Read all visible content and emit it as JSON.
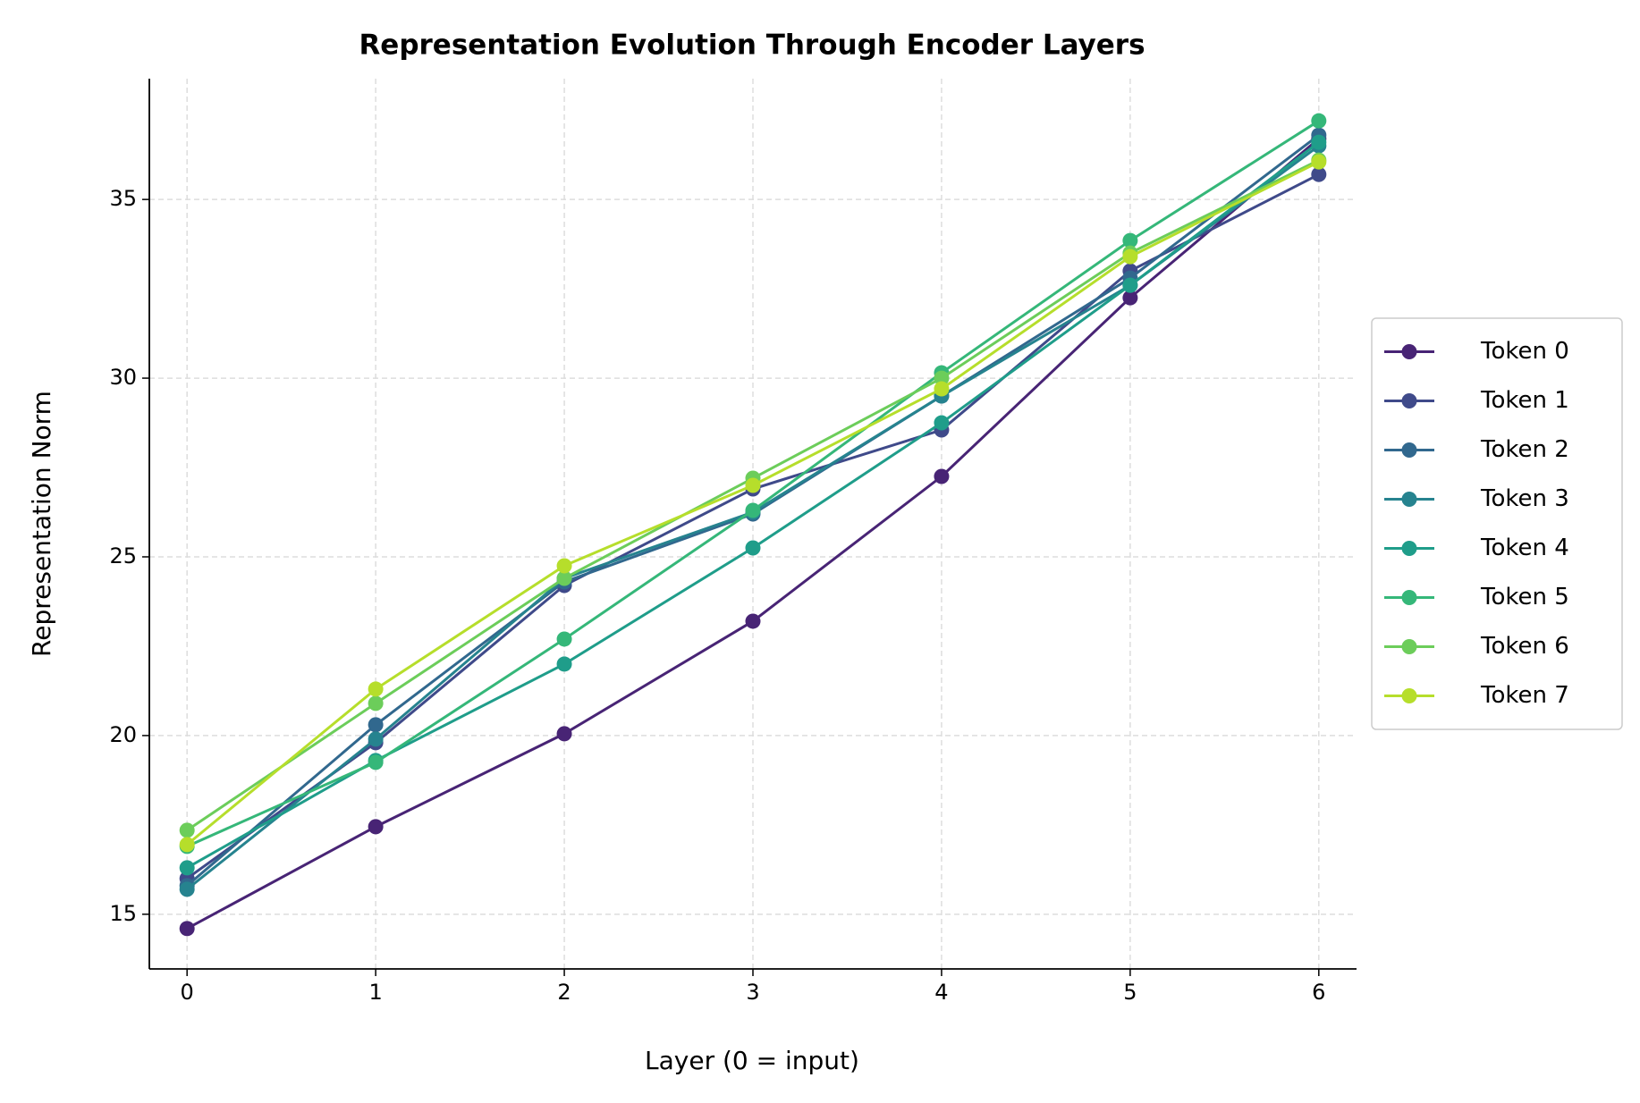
{
  "chart_data": {
    "type": "line",
    "title": "Representation Evolution Through Encoder Layers",
    "x_label": "Layer (0 = input)",
    "y_label": "Representation Norm",
    "x": [
      0,
      1,
      2,
      3,
      4,
      5,
      6
    ],
    "series": [
      {
        "name": "Token 0",
        "color": "#482475",
        "values": [
          14.6,
          17.45,
          20.05,
          23.2,
          27.25,
          32.25,
          36.7
        ]
      },
      {
        "name": "Token 1",
        "color": "#3f4a8a",
        "values": [
          16.0,
          19.8,
          24.2,
          26.9,
          28.55,
          33.0,
          35.7
        ]
      },
      {
        "name": "Token 2",
        "color": "#31688e",
        "values": [
          15.8,
          20.3,
          24.3,
          26.2,
          29.5,
          32.8,
          36.8
        ]
      },
      {
        "name": "Token 3",
        "color": "#26838f",
        "values": [
          15.7,
          19.9,
          24.4,
          26.25,
          29.5,
          32.6,
          36.5
        ]
      },
      {
        "name": "Token 4",
        "color": "#1f9d8a",
        "values": [
          16.3,
          19.3,
          22.0,
          25.25,
          28.75,
          32.6,
          36.6
        ]
      },
      {
        "name": "Token 5",
        "color": "#35b779",
        "values": [
          16.9,
          19.25,
          22.7,
          26.3,
          30.15,
          33.85,
          37.2
        ]
      },
      {
        "name": "Token 6",
        "color": "#6ccd5a",
        "values": [
          17.35,
          20.9,
          24.4,
          27.2,
          30.0,
          33.5,
          36.1
        ]
      },
      {
        "name": "Token 7",
        "color": "#b6de2b",
        "values": [
          16.95,
          21.3,
          24.75,
          27.0,
          29.7,
          33.4,
          36.05
        ]
      }
    ],
    "xlim": [
      -0.2,
      6.2
    ],
    "xticks": [
      0,
      1,
      2,
      3,
      4,
      5,
      6
    ],
    "ylim": [
      13.47,
      38.38
    ],
    "yticks": [
      15,
      20,
      25,
      30,
      35
    ],
    "grid": true,
    "legend": "right"
  }
}
